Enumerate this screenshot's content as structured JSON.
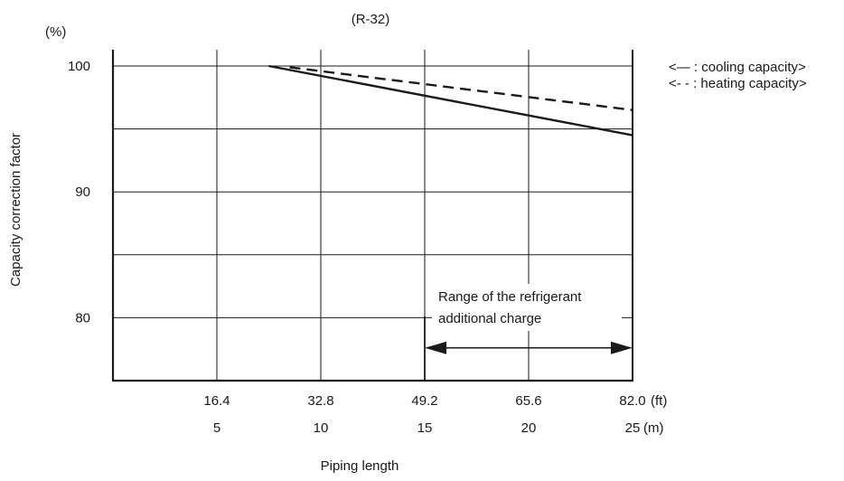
{
  "chart_data": {
    "type": "line",
    "title": "(R-32)",
    "y_unit": "(%)",
    "ylabel": "Capacity correction factor",
    "xlabel": "Piping length",
    "ylim": [
      75,
      100
    ],
    "xlim_m": [
      0,
      25
    ],
    "grid": true,
    "y_ticks": [
      {
        "value": 100,
        "label": "100"
      },
      {
        "value": 90,
        "label": "90"
      },
      {
        "value": 80,
        "label": "80"
      }
    ],
    "y_gridlines": [
      100,
      95,
      90,
      85,
      80
    ],
    "x_ticks": [
      {
        "value": 5,
        "ft": "16.4",
        "m": "5"
      },
      {
        "value": 10,
        "ft": "32.8",
        "m": "10"
      },
      {
        "value": 15,
        "ft": "49.2",
        "m": "15"
      },
      {
        "value": 20,
        "ft": "65.6",
        "m": "20"
      },
      {
        "value": 25,
        "ft": "82.0",
        "m": "25"
      }
    ],
    "x_unit_ft": "(ft)",
    "x_unit_m": "(m)",
    "series": [
      {
        "key": "cooling",
        "style": "solid",
        "x": [
          7.5,
          25
        ],
        "y": [
          100,
          94.5
        ]
      },
      {
        "key": "heating",
        "style": "dashed",
        "x": [
          8.5,
          25
        ],
        "y": [
          99.9,
          96.5
        ]
      }
    ],
    "legend": {
      "position": "top-right",
      "cooling": "<— : cooling capacity>",
      "heating": "<- - : heating capacity>"
    },
    "annotation": {
      "line1": "Range of the refrigerant",
      "line2": "additional charge",
      "range_m": [
        15,
        25
      ],
      "arrow_y": 77.6
    }
  }
}
